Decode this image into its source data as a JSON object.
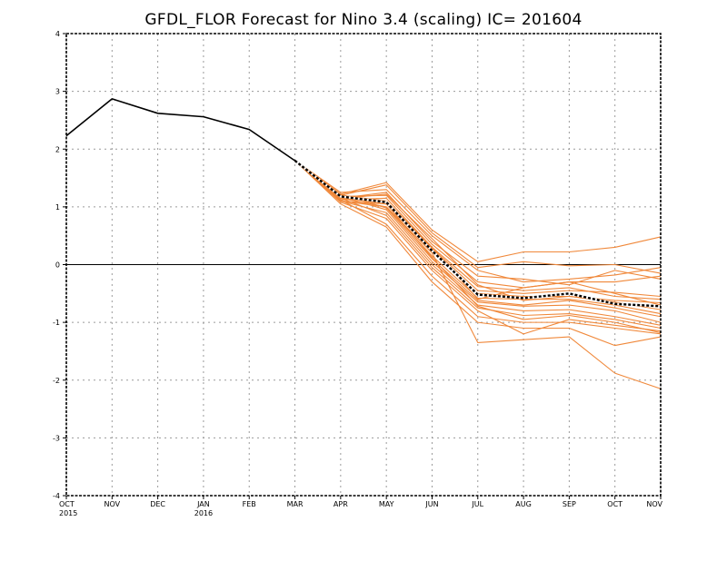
{
  "chart_data": {
    "type": "line",
    "title": "GFDL_FLOR Forecast for Nino 3.4 (scaling) IC= 201604",
    "xlabel": "",
    "ylabel": "",
    "ylim": [
      -4,
      4
    ],
    "yticks": [
      "4",
      "3",
      "2",
      "1",
      "0",
      "-1",
      "-2",
      "-3",
      "-4"
    ],
    "ytick_values": [
      4,
      3,
      2,
      1,
      0,
      -1,
      -2,
      -3,
      -4
    ],
    "categories": [
      "OCT",
      "NOV",
      "DEC",
      "JAN",
      "FEB",
      "MAR",
      "APR",
      "MAY",
      "JUN",
      "JUL",
      "AUG",
      "SEP",
      "OCT",
      "NOV"
    ],
    "category_years": [
      "2015",
      "",
      "",
      "2016",
      "",
      "",
      "",
      "",
      "",
      "",
      "",
      "",
      "",
      ""
    ],
    "grid": true,
    "colors": {
      "observed": "#000000",
      "members": "#f0883a",
      "mean": "#000000",
      "zero_line": "#000000",
      "grid": "#9a9a9a"
    },
    "observed": {
      "x": [
        "OCT",
        "NOV",
        "DEC",
        "JAN",
        "FEB",
        "MAR"
      ],
      "values": [
        2.23,
        2.87,
        2.62,
        2.56,
        2.34,
        1.8
      ]
    },
    "ensemble_mean": {
      "x": [
        "MAR",
        "APR",
        "MAY",
        "JUN",
        "JUL",
        "AUG",
        "SEP",
        "OCT",
        "NOV"
      ],
      "values": [
        1.8,
        1.18,
        1.08,
        0.24,
        -0.52,
        -0.58,
        -0.5,
        -0.68,
        -0.72
      ]
    },
    "ensemble_members": [
      [
        1.8,
        1.22,
        1.42,
        0.6,
        0.05,
        0.22,
        0.22,
        0.3,
        0.48
      ],
      [
        1.8,
        1.2,
        1.38,
        0.55,
        -0.05,
        0.05,
        -0.02,
        0.0,
        -0.15
      ],
      [
        1.8,
        1.25,
        1.3,
        0.5,
        -0.1,
        -0.3,
        -0.25,
        -0.18,
        -0.05
      ],
      [
        1.8,
        1.15,
        1.25,
        0.4,
        -0.2,
        -0.25,
        -0.35,
        -0.1,
        -0.25
      ],
      [
        1.8,
        1.18,
        1.2,
        0.35,
        -0.3,
        -0.4,
        -0.3,
        -0.3,
        -0.2
      ],
      [
        1.8,
        1.12,
        1.15,
        0.3,
        -0.38,
        -0.45,
        -0.4,
        -0.55,
        -0.6
      ],
      [
        1.8,
        1.2,
        1.1,
        0.28,
        -0.45,
        -0.5,
        -0.45,
        -0.48,
        -0.55
      ],
      [
        1.8,
        1.1,
        1.05,
        0.22,
        -0.5,
        -0.55,
        -0.55,
        -0.62,
        -0.66
      ],
      [
        1.8,
        1.15,
        1.0,
        0.15,
        -0.58,
        -0.6,
        -0.6,
        -0.7,
        -0.85
      ],
      [
        1.8,
        1.22,
        0.98,
        0.1,
        -0.62,
        -0.7,
        -0.62,
        -0.75,
        -0.9
      ],
      [
        1.8,
        1.18,
        0.95,
        0.05,
        -0.65,
        -0.72,
        -0.7,
        -0.8,
        -1.0
      ],
      [
        1.8,
        1.1,
        0.9,
        0.0,
        -0.7,
        -0.8,
        -0.78,
        -0.9,
        -1.05
      ],
      [
        1.8,
        1.15,
        0.85,
        -0.05,
        -0.75,
        -0.88,
        -0.85,
        -0.95,
        -1.1
      ],
      [
        1.8,
        1.08,
        0.8,
        -0.1,
        -0.8,
        -1.2,
        -0.95,
        -1.05,
        -1.15
      ],
      [
        1.8,
        1.12,
        0.7,
        -0.2,
        -0.9,
        -1.0,
        -1.0,
        -1.1,
        -1.2
      ],
      [
        1.8,
        1.05,
        0.65,
        -0.3,
        -1.0,
        -1.1,
        -1.1,
        -1.4,
        -1.25
      ],
      [
        1.8,
        1.1,
        1.0,
        0.2,
        -1.35,
        -1.3,
        -1.25,
        -1.88,
        -2.15
      ],
      [
        1.8,
        1.2,
        1.1,
        0.3,
        -0.6,
        -0.4,
        -0.3,
        -0.5,
        -0.7
      ],
      [
        1.8,
        1.14,
        1.22,
        0.45,
        -0.35,
        -0.62,
        -0.55,
        -0.65,
        -0.78
      ],
      [
        1.8,
        1.16,
        1.05,
        0.12,
        -0.72,
        -0.95,
        -0.88,
        -1.0,
        -1.18
      ]
    ]
  }
}
